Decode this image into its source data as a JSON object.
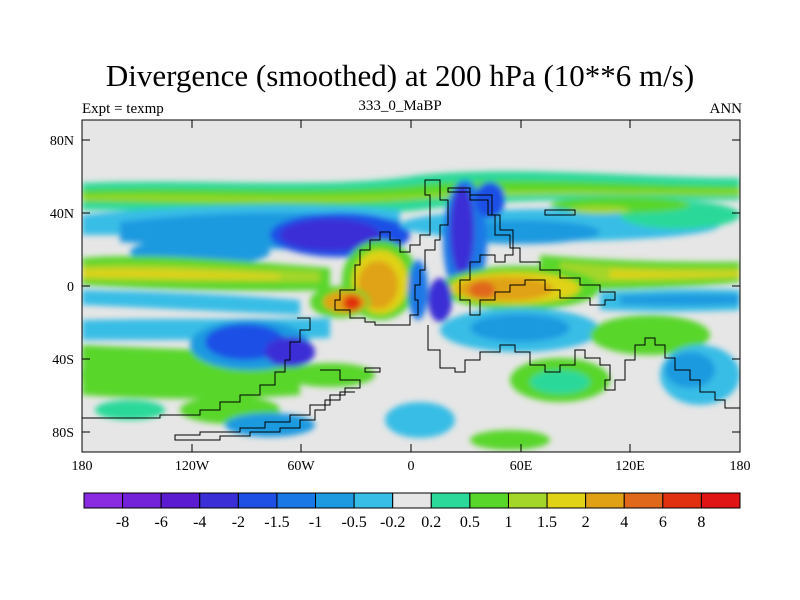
{
  "title": "Divergence (smoothed) at 200 hPa (10**6 m/s)",
  "expt_label": "Expt = texmp",
  "case_label": "333_0_MaBP",
  "period_label": "ANN",
  "lat_labels": [
    "80N",
    "40N",
    "0",
    "40S",
    "80S"
  ],
  "lon_labels": [
    "180",
    "120W",
    "60W",
    "0",
    "60E",
    "120E",
    "180"
  ],
  "colorbar": {
    "labels": [
      "-8",
      "-6",
      "-4",
      "-2",
      "-1.5",
      "-1",
      "-0.5",
      "-0.2",
      "0.2",
      "0.5",
      "1",
      "1.5",
      "2",
      "4",
      "6",
      "8"
    ],
    "colors": [
      "#8a2be2",
      "#7322d9",
      "#5b1bd0",
      "#3a2fd6",
      "#1f50e6",
      "#1a78e6",
      "#1e9ae0",
      "#38bde6",
      "#e6e6e6",
      "#2bd99a",
      "#58d62a",
      "#a4d62a",
      "#e0d214",
      "#e0a214",
      "#e0681a",
      "#e03010",
      "#e01414"
    ]
  }
}
